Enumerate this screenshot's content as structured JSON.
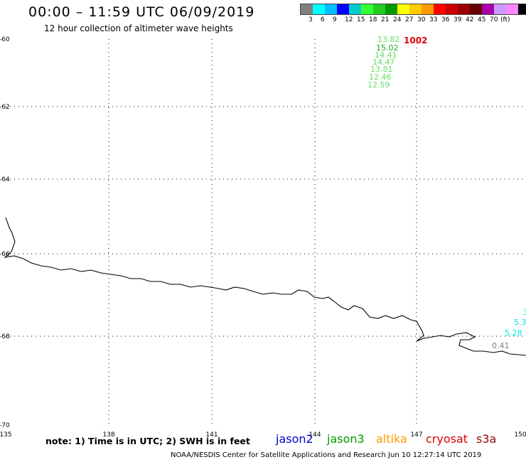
{
  "header": {
    "title": "00:00 – 11:59 UTC 06/09/2019",
    "subtitle": "12 hour collection of altimeter wave heights"
  },
  "legend": {
    "colors": [
      "#808080",
      "#00ffff",
      "#00bfff",
      "#0000ff",
      "#00cccc",
      "#33ff33",
      "#22cc22",
      "#009900",
      "#ffff00",
      "#ffcc00",
      "#ff9900",
      "#ff0000",
      "#cc0000",
      "#990000",
      "#660000",
      "#aa00aa",
      "#cc99ff",
      "#ff88ff",
      "#000000"
    ],
    "labels": [
      "3",
      "6",
      "9",
      "12",
      "15",
      "18",
      "21",
      "24",
      "27",
      "30",
      "33",
      "36",
      "39",
      "42",
      "45",
      "70",
      "(ft)"
    ]
  },
  "map": {
    "latitude_labels": [
      "-60",
      "-62",
      "-64",
      "-66",
      "-68",
      "-70"
    ],
    "longitude_labels": [
      "135",
      "138",
      "141",
      "144",
      "147",
      "150"
    ],
    "pressure_label": "1002",
    "wave_heights": [
      {
        "value": "13.82",
        "color": "#66dd66"
      },
      {
        "value": "15.02",
        "color": "#22aa22"
      },
      {
        "value": "14.41",
        "color": "#66dd66"
      },
      {
        "value": "14.47",
        "color": "#66dd66"
      },
      {
        "value": "13.81",
        "color": "#66dd66"
      },
      {
        "value": "12.46",
        "color": "#66dd66"
      },
      {
        "value": "12.59",
        "color": "#66dd66"
      },
      {
        "value": "3",
        "color": "#00e5e5"
      },
      {
        "value": "5.3",
        "color": "#00e5e5"
      },
      {
        "value": "5.28",
        "color": "#00e5e5"
      },
      {
        "value": "0.41",
        "color": "#808080"
      }
    ]
  },
  "footer": {
    "note": "note:  1) Time is in UTC;  2) SWH is in feet",
    "missions": [
      {
        "name": "jason2",
        "color": "#0000cc"
      },
      {
        "name": "jason3",
        "color": "#009900"
      },
      {
        "name": "altika",
        "color": "#ff9900"
      },
      {
        "name": "cryosat",
        "color": "#dd0000"
      },
      {
        "name": "s3a",
        "color": "#990000"
      }
    ],
    "credit": "NOAA/NESDIS Center for Satellite Applications and Research    Jun 10 12:27:14 UTC 2019"
  }
}
